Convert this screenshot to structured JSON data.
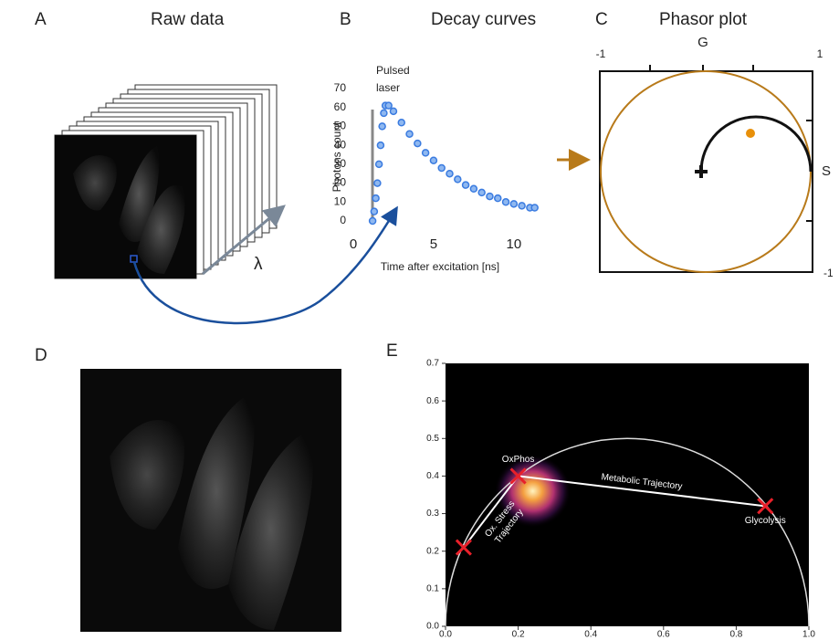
{
  "panels": {
    "A": {
      "label": "A",
      "title": "Raw data",
      "symbol": "λ"
    },
    "C": {
      "label": "C",
      "title": "Phasor plot",
      "x_axis": "G",
      "y_axis": "S",
      "top_left": "-1",
      "top_right": "1",
      "bottom_right": "-1"
    },
    "D": {
      "label": "D"
    }
  },
  "chart_data": [
    {
      "type": "scatter",
      "panel_label": "B",
      "title": "Decay curves",
      "annotation": [
        "Pulsed",
        "laser"
      ],
      "x_label": "Time after excitation [ns]",
      "y_label": "Photons count",
      "x": [
        1.2,
        1.3,
        1.4,
        1.5,
        1.6,
        1.7,
        1.8,
        1.9,
        2.0,
        2.2,
        2.5,
        3,
        3.5,
        4,
        4.5,
        5,
        5.5,
        6,
        6.5,
        7,
        7.5,
        8,
        8.5,
        9,
        9.5,
        10,
        10.5,
        11,
        11.3
      ],
      "values": [
        0,
        5,
        12,
        20,
        30,
        40,
        50,
        57,
        61,
        61,
        58,
        52,
        46,
        41,
        36,
        32,
        28,
        25,
        22,
        19,
        17,
        15,
        13,
        12,
        10,
        9,
        8,
        7,
        7
      ],
      "color": "#3a7be0",
      "xlim": [
        0,
        12
      ],
      "ylim": [
        0,
        70
      ],
      "xticks": [
        0,
        5,
        10
      ],
      "yticks": [
        0,
        10,
        20,
        30,
        40,
        50,
        60,
        70
      ]
    },
    {
      "type": "phasor",
      "panel_label": "E",
      "x": [
        0.2,
        0.88,
        0.05
      ],
      "values": [
        0.4,
        0.32,
        0.21
      ],
      "point_labels": [
        "OxPhos",
        "Glycolysis",
        null
      ],
      "annotations": [
        "Metabolic Trajectory",
        "Ox. Stress",
        "Trajectory"
      ],
      "cluster": {
        "x": 0.24,
        "y": 0.36
      },
      "color": "#e8202a",
      "xlim": [
        0,
        1
      ],
      "ylim": [
        0,
        0.7
      ],
      "xticks": [
        {
          "value": 0,
          "label": "0.0"
        },
        0.2,
        0.4,
        0.6,
        0.8,
        {
          "value": 1,
          "label": "1.0"
        }
      ],
      "yticks": [
        {
          "value": 0,
          "label": "0.0"
        },
        0.1,
        0.2,
        0.3,
        0.4,
        0.5,
        0.6,
        0.7
      ]
    }
  ]
}
